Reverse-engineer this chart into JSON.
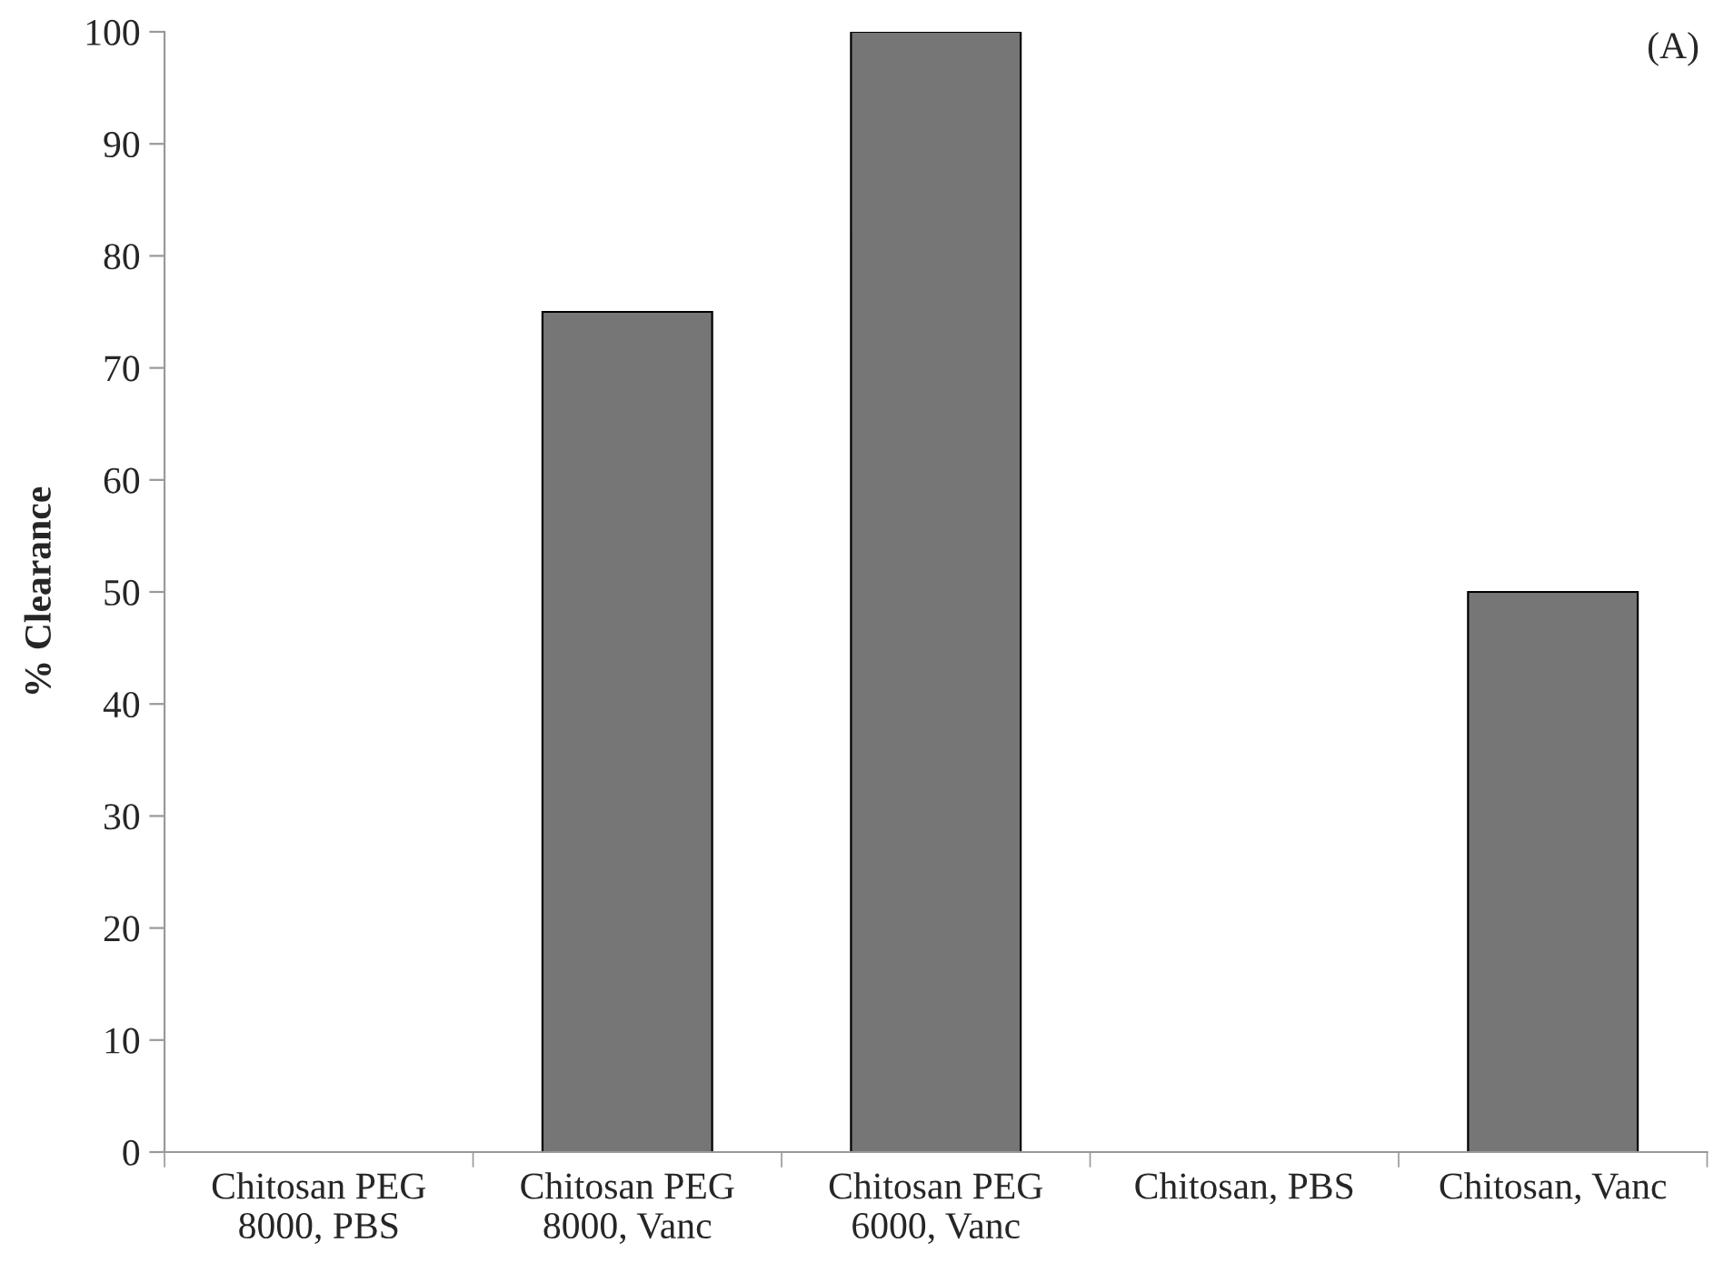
{
  "chart_data": {
    "type": "bar",
    "ylabel": "% Clearance",
    "categories": [
      "Chitosan PEG\n8000, PBS",
      "Chitosan PEG\n8000, Vanc",
      "Chitosan PEG\n6000, Vanc",
      "Chitosan, PBS",
      "Chitosan, Vanc"
    ],
    "values": [
      0,
      75,
      100,
      0,
      50
    ],
    "color": "#767676",
    "ylim": [
      0,
      100
    ],
    "yticks": [
      0,
      10,
      20,
      30,
      40,
      50,
      60,
      70,
      80,
      90,
      100
    ],
    "annotations": [
      "(A)"
    ],
    "grid": false,
    "legend": false
  }
}
